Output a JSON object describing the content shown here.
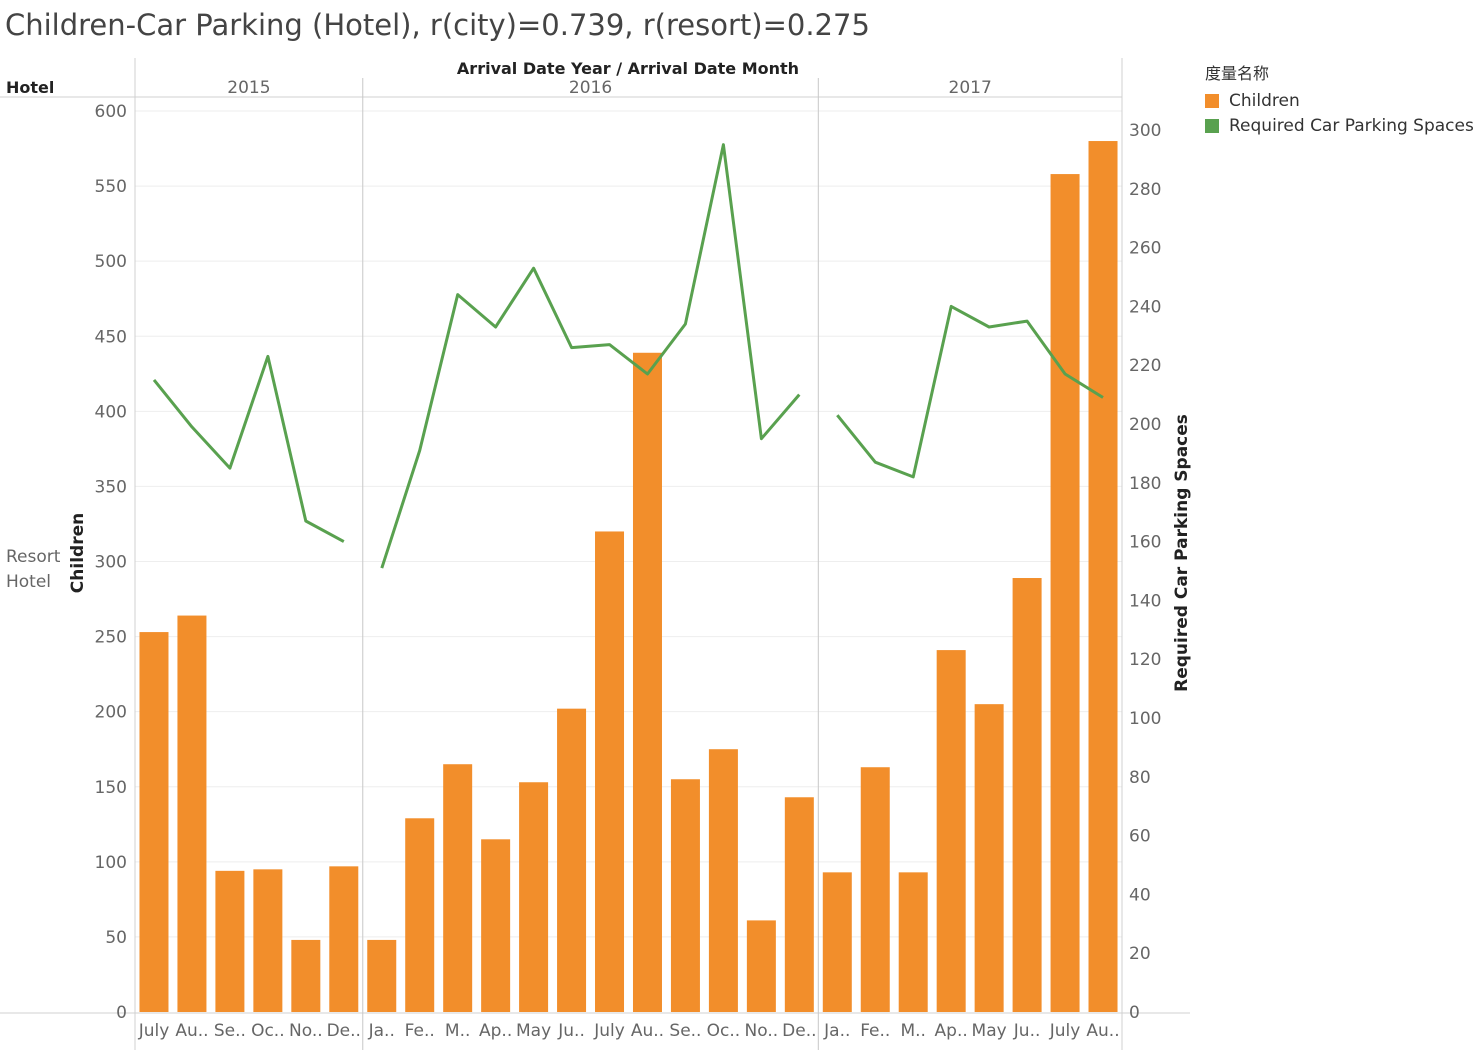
{
  "title": "Children-Car Parking (Hotel), r(city)=0.739, r(resort)=0.275",
  "colors": {
    "children": "#f28e2b",
    "parking": "#59a14f"
  },
  "legend": {
    "title": "度量名称",
    "items": [
      {
        "label": "Children",
        "color": "#f28e2b"
      },
      {
        "label": "Required Car Parking Spaces",
        "color": "#59a14f"
      }
    ]
  },
  "header": {
    "row_dim": "Hotel",
    "col_dims": "Arrival Date Year  /  Arrival Date Month",
    "row_value": "Resort\nHotel"
  },
  "chart_data": {
    "type": "bar",
    "title": "Children-Car Parking (Hotel), r(city)=0.739, r(resort)=0.275",
    "years": [
      {
        "year": "2015",
        "count": 6
      },
      {
        "year": "2016",
        "count": 12
      },
      {
        "year": "2017",
        "count": 8
      }
    ],
    "categories": [
      "July",
      "Au..",
      "Se..",
      "Oc..",
      "No..",
      "De..",
      "Ja..",
      "Fe..",
      "M..",
      "Ap..",
      "May",
      "Ju..",
      "July",
      "Au..",
      "Se..",
      "Oc..",
      "No..",
      "De..",
      "Ja..",
      "Fe..",
      "M..",
      "Ap..",
      "May",
      "Ju..",
      "July",
      "Au.."
    ],
    "series": [
      {
        "name": "Children",
        "type": "bar",
        "axis": "left",
        "values": [
          253,
          264,
          94,
          95,
          48,
          97,
          48,
          129,
          165,
          115,
          153,
          202,
          320,
          439,
          155,
          175,
          61,
          143,
          93,
          163,
          93,
          241,
          205,
          289,
          558,
          580
        ]
      },
      {
        "name": "Required Car Parking Spaces",
        "type": "line",
        "axis": "right",
        "segments": [
          [
            215,
            199,
            185,
            223,
            167,
            160
          ],
          [
            151,
            191,
            244,
            233,
            253,
            226,
            227,
            217,
            234,
            295,
            195,
            210
          ],
          [
            203,
            187,
            182,
            240,
            233,
            235,
            217,
            209
          ]
        ]
      }
    ],
    "y_left": {
      "label": "Children",
      "range": [
        0,
        600
      ],
      "ticks": [
        0,
        50,
        100,
        150,
        200,
        250,
        300,
        350,
        400,
        450,
        500,
        550,
        600
      ]
    },
    "y_right": {
      "label": "Required Car Parking Spaces",
      "range": [
        0,
        300
      ],
      "ticks": [
        0,
        20,
        40,
        60,
        80,
        100,
        120,
        140,
        160,
        180,
        200,
        220,
        240,
        260,
        280,
        300
      ]
    },
    "grid": true,
    "legend_position": "top-right"
  }
}
